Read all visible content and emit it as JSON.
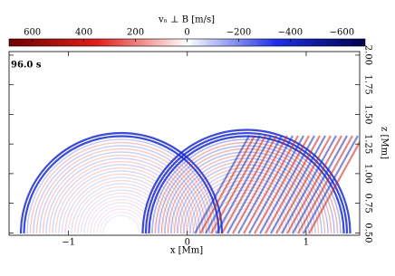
{
  "chart_data": {
    "type": "heatmap",
    "colorbar_label": "vₙ ⊥ B [m/s]",
    "annotation": "96.0 s",
    "x_label": "x [Mm]",
    "y_label": "z [Mm]",
    "xlim": [
      -1.5,
      1.45
    ],
    "xticks": [
      {
        "value": -1,
        "label": "−1"
      },
      0,
      1
    ],
    "ylim": [
      0.48,
      2.03
    ],
    "yticks": [
      {
        "value": 0.5,
        "label": "0.50"
      },
      0.75,
      {
        "value": 1.0,
        "label": "1.00"
      },
      1.25,
      {
        "value": 1.5,
        "label": "1.50"
      },
      1.75,
      {
        "value": 2.0,
        "label": "2.00"
      }
    ],
    "clim": [
      690,
      -690
    ],
    "cticks": [
      600,
      400,
      200,
      0,
      {
        "value": -200,
        "label": "−200"
      },
      {
        "value": -400,
        "label": "−400"
      },
      {
        "value": -600,
        "label": "−600"
      }
    ],
    "colormap": [
      "#6e0000",
      "#e0201a",
      "#ffffff",
      "#1e30e6",
      "#00004a"
    ]
  }
}
